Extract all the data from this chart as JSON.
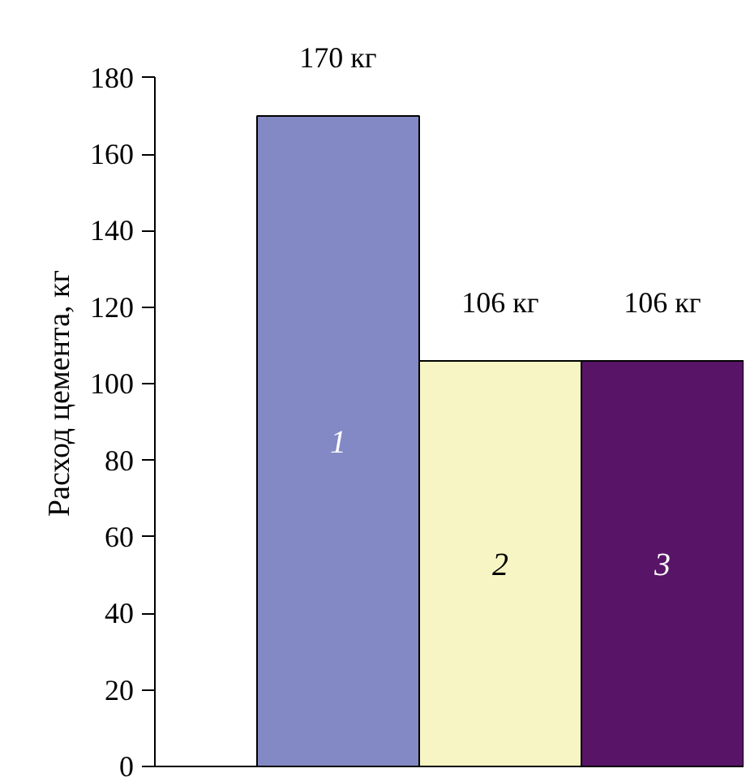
{
  "chart_data": {
    "type": "bar",
    "ylabel": "Расход цемента, кг",
    "categories": [
      "1",
      "2",
      "3"
    ],
    "values": [
      170,
      106,
      106
    ],
    "colors": [
      "#8389c4",
      "#f7f5c3",
      "#581567"
    ],
    "value_labels": [
      "170 кг",
      "106 кг",
      "106 кг"
    ],
    "ylim": [
      0,
      180
    ],
    "yticks": [
      0,
      20,
      40,
      60,
      80,
      100,
      120,
      140,
      160,
      180
    ]
  }
}
